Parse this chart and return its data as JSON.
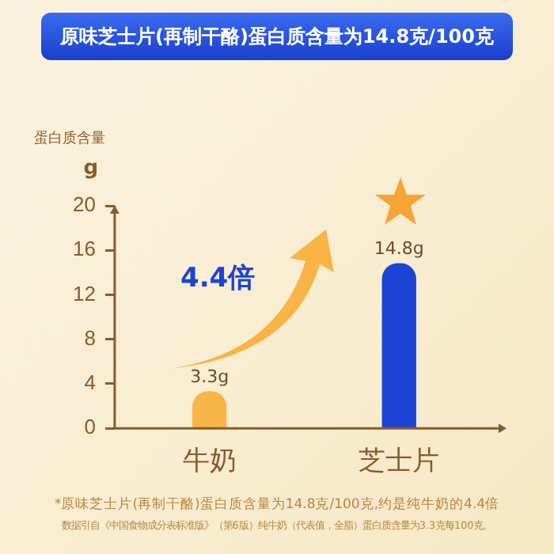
{
  "chart_data": {
    "type": "bar",
    "title": "原味芝士片(再制干酪)蛋白质含量为14.8克/100克",
    "ylabel": "蛋白质含量",
    "categories": [
      "牛奶",
      "芝士片"
    ],
    "values": [
      3.3,
      14.8
    ],
    "colors": [
      "#f7b548",
      "#1c44d4"
    ],
    "value_labels": [
      "3.3g",
      "14.8g"
    ],
    "ylim": [
      0,
      20
    ],
    "yticks": [
      0,
      4,
      8,
      12,
      16,
      20
    ],
    "grid": false,
    "legend": false,
    "annotations": [
      "g",
      "4.4倍",
      "*原味芝士片(再制干酪)蛋白质含量为14.8克/100克,约是纯牛奶的4.4倍",
      "数据引自《中国食物成分表标准版》（第6版）纯牛奶（代表值，全脂）蛋白质含量为3.3克每100克。"
    ]
  }
}
